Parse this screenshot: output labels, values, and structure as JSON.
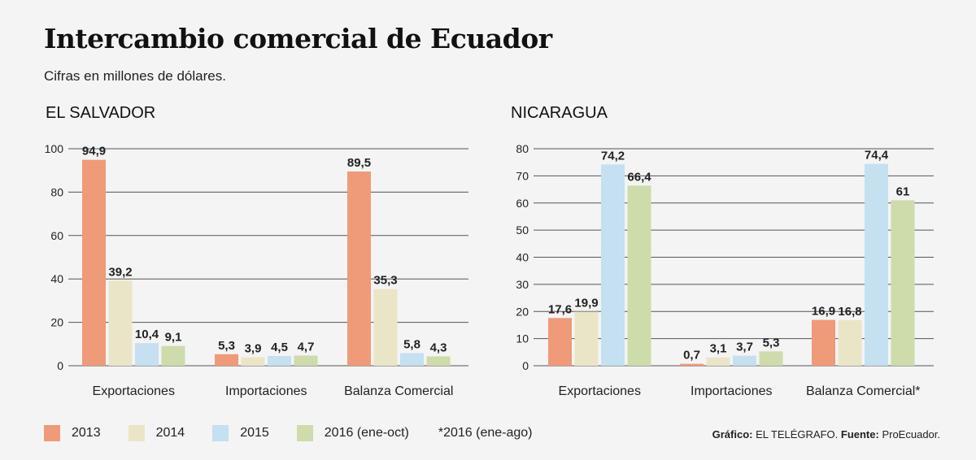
{
  "title": "Intercambio comercial de Ecuador",
  "subtitle": "Cifras en millones de dólares.",
  "colors": {
    "s2013": "#ef9a79",
    "s2014": "#ebe5c7",
    "s2015": "#c4e0f1",
    "s2016": "#cddcaa",
    "grid": "#555555"
  },
  "legend": {
    "items": [
      {
        "label": "2013",
        "color": "#ef9a79"
      },
      {
        "label": "2014",
        "color": "#ebe5c7"
      },
      {
        "label": "2015",
        "color": "#c4e0f1"
      },
      {
        "label": "2016 (ene-oct)",
        "color": "#cddcaa"
      }
    ],
    "footnote": "*2016 (ene-ago)"
  },
  "credit": {
    "grafico_label": "Gráfico:",
    "grafico_value": "EL TELÉGRAFO.",
    "fuente_label": "Fuente:",
    "fuente_value": "ProEcuador."
  },
  "chart_data": [
    {
      "type": "bar",
      "title": "EL SALVADOR",
      "categories": [
        "Exportaciones",
        "Importaciones",
        "Balanza Comercial"
      ],
      "ylim": [
        0,
        100
      ],
      "yticks": [
        0,
        20,
        40,
        60,
        80,
        100
      ],
      "grid": true,
      "series": [
        {
          "name": "2013",
          "values": [
            94.9,
            5.3,
            89.5
          ],
          "labels": [
            "94,9",
            "5,3",
            "89,5"
          ]
        },
        {
          "name": "2014",
          "values": [
            39.2,
            3.9,
            35.3
          ],
          "labels": [
            "39,2",
            "3,9",
            "35,3"
          ]
        },
        {
          "name": "2015",
          "values": [
            10.4,
            4.5,
            5.8
          ],
          "labels": [
            "10,4",
            "4,5",
            "5,8"
          ]
        },
        {
          "name": "2016 (ene-oct)",
          "values": [
            9.1,
            4.7,
            4.3
          ],
          "labels": [
            "9,1",
            "4,7",
            "4,3"
          ]
        }
      ]
    },
    {
      "type": "bar",
      "title": "NICARAGUA",
      "categories": [
        "Exportaciones",
        "Importaciones",
        "Balanza Comercial*"
      ],
      "ylim": [
        0,
        80
      ],
      "yticks": [
        0,
        10,
        20,
        30,
        40,
        50,
        60,
        70,
        80
      ],
      "grid": true,
      "series": [
        {
          "name": "2013",
          "values": [
            17.6,
            0.7,
            16.9
          ],
          "labels": [
            "17,6",
            "0,7",
            "16,9"
          ]
        },
        {
          "name": "2014",
          "values": [
            19.9,
            3.1,
            16.8
          ],
          "labels": [
            "19,9",
            "3,1",
            "16,8"
          ]
        },
        {
          "name": "2015",
          "values": [
            74.2,
            3.7,
            74.4
          ],
          "labels": [
            "74,2",
            "3,7",
            "74,4"
          ]
        },
        {
          "name": "2016 (ene-oct)",
          "values": [
            66.4,
            5.3,
            61
          ],
          "labels": [
            "66,4",
            "5,3",
            "61"
          ]
        }
      ]
    }
  ]
}
